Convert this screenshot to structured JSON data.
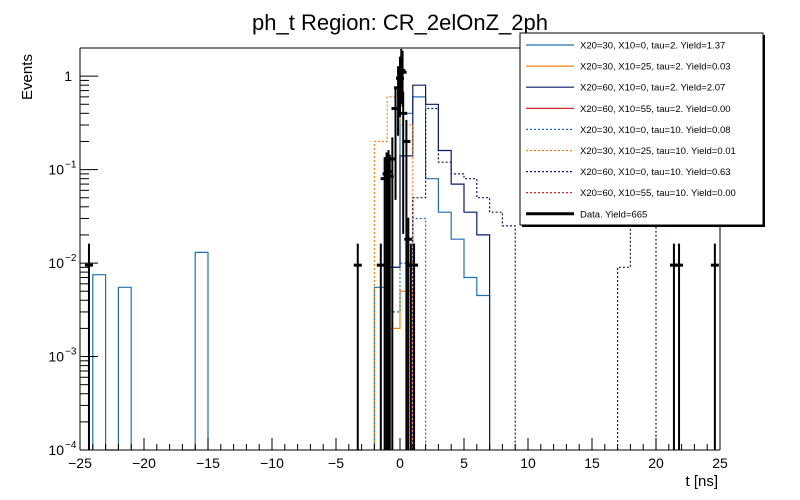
{
  "chart_data": {
    "type": "histogram",
    "title": "ph_t Region: CR_2elOnZ_2ph",
    "xlabel": "t [ns]",
    "ylabel": "Events",
    "xlim": [
      -25,
      25
    ],
    "ylim": [
      0.0001,
      2
    ],
    "yscale": "log",
    "bin_width": 1,
    "x_ticks": [
      {
        "value": -25,
        "label": "−25"
      },
      {
        "value": -20,
        "label": "−20"
      },
      {
        "value": -15,
        "label": "−15"
      },
      {
        "value": -10,
        "label": "−10"
      },
      {
        "value": -5,
        "label": "−5"
      },
      {
        "value": 0,
        "label": "0"
      },
      {
        "value": 5,
        "label": "5"
      },
      {
        "value": 10,
        "label": "10"
      },
      {
        "value": 15,
        "label": "15"
      },
      {
        "value": 20,
        "label": "20"
      },
      {
        "value": 25,
        "label": "25"
      }
    ],
    "y_ticks": [
      {
        "value": 0.0001,
        "base": "10",
        "exp": "−4"
      },
      {
        "value": 0.001,
        "base": "10",
        "exp": "−3"
      },
      {
        "value": 0.01,
        "base": "10",
        "exp": "−2"
      },
      {
        "value": 0.1,
        "base": "10",
        "exp": "−1"
      },
      {
        "value": 1,
        "base": "1",
        "exp": ""
      }
    ],
    "series": [
      {
        "name": "X20=30, X10=0, tau=2. Yield=1.37",
        "color": "#1f6fb4",
        "dash": false,
        "bins": [
          [
            -24,
            0.0075
          ],
          [
            -23,
            0.0001
          ],
          [
            -22,
            0.0055
          ],
          [
            -17,
            0.0001
          ],
          [
            -16,
            0.013
          ],
          [
            -4,
            0.0001
          ],
          [
            -2,
            0.0055
          ],
          [
            -1,
            0.009
          ],
          [
            0,
            0.4
          ],
          [
            1,
            0.6
          ],
          [
            2,
            0.08
          ],
          [
            3,
            0.035
          ],
          [
            4,
            0.018
          ],
          [
            5,
            0.007
          ],
          [
            6,
            0.0045
          ]
        ]
      },
      {
        "name": "X20=30, X10=25, tau=2. Yield=0.03",
        "color": "#ff7f0e",
        "dash": false,
        "bins": [
          [
            -1,
            0.002
          ],
          [
            0,
            0.005
          ]
        ]
      },
      {
        "name": "X20=60, X10=0, tau=2. Yield=2.07",
        "color": "#0a1a6b",
        "dash": false,
        "bins": [
          [
            -1,
            0.009
          ],
          [
            0,
            0.14
          ],
          [
            1,
            0.8
          ],
          [
            2,
            0.5
          ],
          [
            3,
            0.16
          ],
          [
            4,
            0.07
          ],
          [
            5,
            0.035
          ],
          [
            6,
            0.02
          ]
        ]
      },
      {
        "name": "X20=60, X10=55, tau=2. Yield=0.00",
        "color": "#cc1111",
        "dash": false,
        "bins": []
      },
      {
        "name": "X20=30, X10=0, tau=10. Yield=0.08",
        "color": "#1f6fb4",
        "dash": true,
        "bins": [
          [
            -1,
            0.003
          ],
          [
            0,
            0.01
          ],
          [
            1,
            0.03
          ]
        ]
      },
      {
        "name": "X20=30, X10=25, tau=10. Yield=0.01",
        "color": "#ff7f0e",
        "dash": true,
        "bins": [
          [
            -2,
            0.2
          ],
          [
            -1,
            0.6
          ],
          [
            0,
            0.3
          ]
        ]
      },
      {
        "name": "X20=60, X10=0, tau=10. Yield=0.63",
        "color": "#0a1a6b",
        "dash": true,
        "bins": [
          [
            1,
            0.05
          ],
          [
            2,
            0.45
          ],
          [
            3,
            0.12
          ],
          [
            4,
            0.09
          ],
          [
            5,
            0.08
          ],
          [
            6,
            0.05
          ],
          [
            7,
            0.035
          ],
          [
            8,
            0.025
          ],
          [
            17,
            0.009
          ],
          [
            18,
            0.05
          ],
          [
            19,
            0.1
          ]
        ]
      },
      {
        "name": "X20=60, X10=55, tau=10. Yield=0.00",
        "color": "#cc1111",
        "dash": true,
        "bins": []
      },
      {
        "name": "Data. Yield=665",
        "color": "#000000",
        "dash": false,
        "is_data": true,
        "points": [
          [
            -24.3,
            0.0095
          ],
          [
            -3.3,
            0.0095
          ],
          [
            -1.5,
            0.0095
          ],
          [
            -1.2,
            0.08
          ],
          [
            -1.05,
            0.09
          ],
          [
            -0.9,
            0.095
          ],
          [
            -0.8,
            0.085
          ],
          [
            -0.6,
            0.13
          ],
          [
            -0.35,
            0.45
          ],
          [
            -0.15,
            0.75
          ],
          [
            0,
            0.95
          ],
          [
            0.1,
            1.15
          ],
          [
            0.2,
            1.1
          ],
          [
            0.25,
            0.4
          ],
          [
            0.5,
            0.2
          ],
          [
            0.65,
            0.018
          ],
          [
            0.85,
            0.0095
          ],
          [
            1.1,
            0.0095
          ],
          [
            21.4,
            0.0095
          ],
          [
            21.8,
            0.0095
          ],
          [
            24.6,
            0.0095
          ]
        ]
      }
    ],
    "legend_position": "top-right"
  }
}
